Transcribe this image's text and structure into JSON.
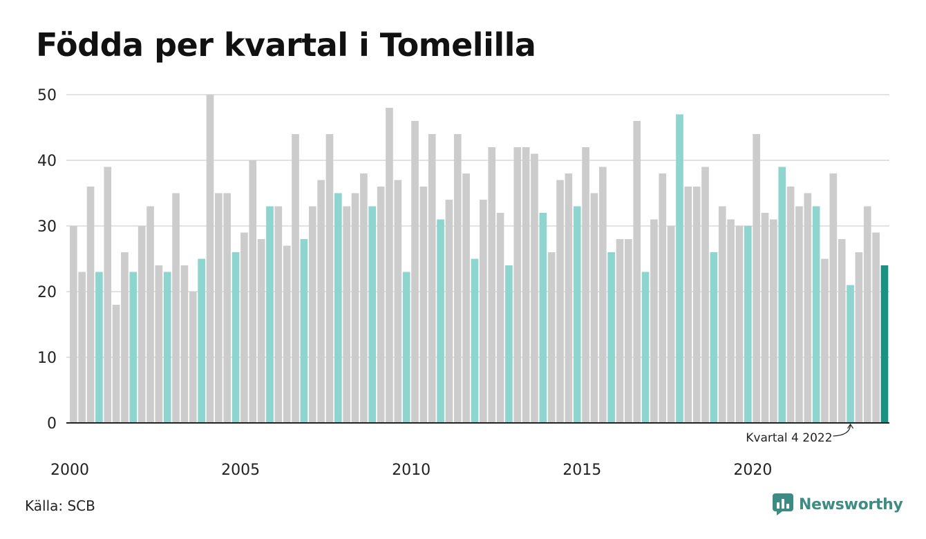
{
  "title": "Födda per kvartal i Tomelilla",
  "source": "Källa: SCB",
  "brand": {
    "name": "Newsworthy"
  },
  "colors": {
    "bar_default": "#cccccc",
    "bar_q4": "#8dd5ce",
    "bar_latest": "#1a9283",
    "grid": "#e2e2e2",
    "axis": "#222222",
    "brand": "#3d8c84"
  },
  "chart_data": {
    "type": "bar",
    "title": "Födda per kvartal i Tomelilla",
    "xlabel": "",
    "ylabel": "",
    "ylim": [
      0,
      50
    ],
    "yticks": [
      0,
      10,
      20,
      30,
      40,
      50
    ],
    "xticks": [
      "2000",
      "2005",
      "2010",
      "2015",
      "2020"
    ],
    "grid": true,
    "start_year": 2000,
    "values": [
      30,
      23,
      36,
      23,
      39,
      18,
      26,
      23,
      30,
      33,
      24,
      23,
      35,
      24,
      20,
      25,
      50,
      35,
      35,
      26,
      29,
      40,
      28,
      33,
      33,
      27,
      44,
      28,
      33,
      37,
      44,
      35,
      33,
      35,
      38,
      33,
      36,
      48,
      37,
      23,
      46,
      36,
      44,
      31,
      34,
      44,
      38,
      25,
      34,
      42,
      32,
      24,
      42,
      42,
      41,
      32,
      26,
      37,
      38,
      33,
      42,
      35,
      39,
      26,
      28,
      28,
      46,
      23,
      31,
      38,
      30,
      47,
      36,
      36,
      39,
      26,
      33,
      31,
      30,
      30,
      44,
      32,
      31,
      39,
      36,
      33,
      35,
      33,
      25,
      38,
      28,
      21,
      26,
      33,
      29,
      24
    ],
    "annotation": {
      "label": "Kvartal 4 2022",
      "target_index": 91
    }
  }
}
